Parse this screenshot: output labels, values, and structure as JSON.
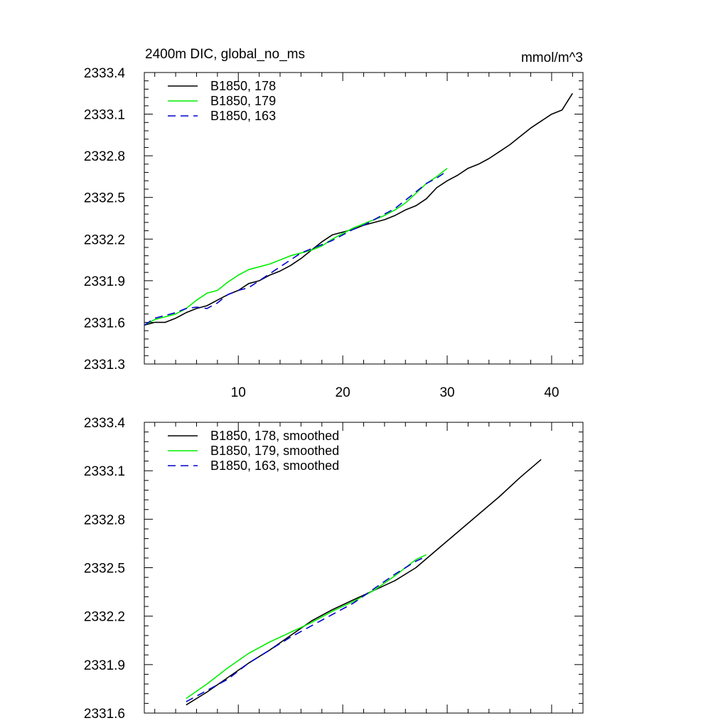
{
  "header": {
    "title_left": "2400m DIC, global_no_ms",
    "title_right": "mmol/m^3"
  },
  "chart_data": [
    {
      "type": "line",
      "xlim": [
        1,
        43
      ],
      "ylim": [
        2331.3,
        2333.4
      ],
      "xticks": [
        10,
        20,
        30,
        40
      ],
      "xticklabels": [
        "10",
        "20",
        "30",
        "40"
      ],
      "yticks": [
        2331.3,
        2331.6,
        2331.9,
        2332.2,
        2332.5,
        2332.8,
        2333.1,
        2333.4
      ],
      "yticklabels": [
        "2331.3",
        "2331.6",
        "2331.9",
        "2332.2",
        "2332.5",
        "2332.8",
        "2333.1",
        "2333.4"
      ],
      "legend_position": "top-left",
      "series": [
        {
          "name": "B1850, 178",
          "color": "#000000",
          "dash": "solid",
          "x": [
            1,
            2,
            3,
            4,
            5,
            6,
            7,
            8,
            9,
            10,
            11,
            12,
            13,
            14,
            15,
            16,
            17,
            18,
            19,
            20,
            21,
            22,
            23,
            24,
            25,
            26,
            27,
            28,
            29,
            30,
            31,
            32,
            33,
            34,
            35,
            36,
            37,
            38,
            39,
            40,
            41,
            42
          ],
          "y": [
            2331.58,
            2331.6,
            2331.6,
            2331.63,
            2331.67,
            2331.7,
            2331.72,
            2331.76,
            2331.8,
            2331.83,
            2331.88,
            2331.9,
            2331.94,
            2331.97,
            2332.01,
            2332.06,
            2332.12,
            2332.18,
            2332.23,
            2332.25,
            2332.27,
            2332.3,
            2332.32,
            2332.34,
            2332.37,
            2332.41,
            2332.44,
            2332.49,
            2332.57,
            2332.62,
            2332.66,
            2332.71,
            2332.74,
            2332.78,
            2332.83,
            2332.88,
            2332.94,
            2333.0,
            2333.05,
            2333.1,
            2333.13,
            2333.25
          ]
        },
        {
          "name": "B1850, 179",
          "color": "#00ee00",
          "dash": "solid",
          "x": [
            1,
            2,
            3,
            4,
            5,
            6,
            7,
            8,
            9,
            10,
            11,
            12,
            13,
            14,
            15,
            16,
            17,
            18,
            19,
            20,
            21,
            22,
            23,
            24,
            25,
            26,
            27,
            28,
            29,
            30
          ],
          "y": [
            2331.58,
            2331.62,
            2331.64,
            2331.66,
            2331.7,
            2331.76,
            2331.81,
            2331.83,
            2331.89,
            2331.94,
            2331.98,
            2332.0,
            2332.02,
            2332.05,
            2332.08,
            2332.1,
            2332.12,
            2332.15,
            2332.2,
            2332.24,
            2332.28,
            2332.31,
            2332.34,
            2332.37,
            2332.41,
            2332.46,
            2332.53,
            2332.6,
            2332.65,
            2332.71
          ]
        },
        {
          "name": "B1850, 163",
          "color": "#0000cc",
          "dash": "dashed",
          "x": [
            1,
            2,
            3,
            4,
            5,
            6,
            7,
            8,
            9,
            10,
            11,
            12,
            13,
            14,
            15,
            16,
            17,
            18,
            19,
            20,
            21,
            22,
            23,
            24,
            25,
            26,
            27,
            28,
            29,
            30
          ],
          "y": [
            2331.58,
            2331.63,
            2331.65,
            2331.67,
            2331.7,
            2331.71,
            2331.7,
            2331.74,
            2331.8,
            2331.83,
            2331.85,
            2331.9,
            2331.95,
            2332.0,
            2332.05,
            2332.1,
            2332.13,
            2332.16,
            2332.19,
            2332.23,
            2332.27,
            2332.3,
            2332.34,
            2332.38,
            2332.42,
            2332.48,
            2332.54,
            2332.6,
            2332.64,
            2332.69
          ]
        }
      ]
    },
    {
      "type": "line",
      "xlim": [
        1,
        43
      ],
      "ylim": [
        2331.6,
        2333.4
      ],
      "xticks": [
        10,
        20,
        30,
        40
      ],
      "xticklabels": [],
      "yticks": [
        2331.6,
        2331.9,
        2332.2,
        2332.5,
        2332.8,
        2333.1,
        2333.4
      ],
      "yticklabels": [
        "2331.6",
        "2331.9",
        "2332.2",
        "2332.5",
        "2332.8",
        "2333.1",
        "2333.4"
      ],
      "legend_position": "top-left",
      "series": [
        {
          "name": "B1850, 178, smoothed",
          "color": "#000000",
          "dash": "solid",
          "x": [
            5,
            7,
            9,
            11,
            13,
            15,
            17,
            19,
            21,
            23,
            25,
            27,
            29,
            31,
            33,
            35,
            37,
            39
          ],
          "y": [
            2331.65,
            2331.73,
            2331.82,
            2331.91,
            2331.99,
            2332.08,
            2332.17,
            2332.24,
            2332.3,
            2332.36,
            2332.42,
            2332.5,
            2332.61,
            2332.72,
            2332.83,
            2332.94,
            2333.06,
            2333.17
          ]
        },
        {
          "name": "B1850, 179, smoothed",
          "color": "#00ee00",
          "dash": "solid",
          "x": [
            5,
            7,
            9,
            11,
            13,
            15,
            17,
            19,
            21,
            23,
            25,
            27,
            28
          ],
          "y": [
            2331.69,
            2331.78,
            2331.88,
            2331.97,
            2332.04,
            2332.1,
            2332.16,
            2332.23,
            2332.29,
            2332.36,
            2332.45,
            2332.55,
            2332.58
          ]
        },
        {
          "name": "B1850, 163, smoothed",
          "color": "#0000cc",
          "dash": "dashed",
          "x": [
            5,
            7,
            9,
            11,
            13,
            15,
            17,
            19,
            21,
            23,
            25,
            27,
            28
          ],
          "y": [
            2331.67,
            2331.74,
            2331.81,
            2331.91,
            2331.99,
            2332.07,
            2332.14,
            2332.21,
            2332.28,
            2332.37,
            2332.46,
            2332.54,
            2332.57
          ]
        }
      ]
    }
  ]
}
